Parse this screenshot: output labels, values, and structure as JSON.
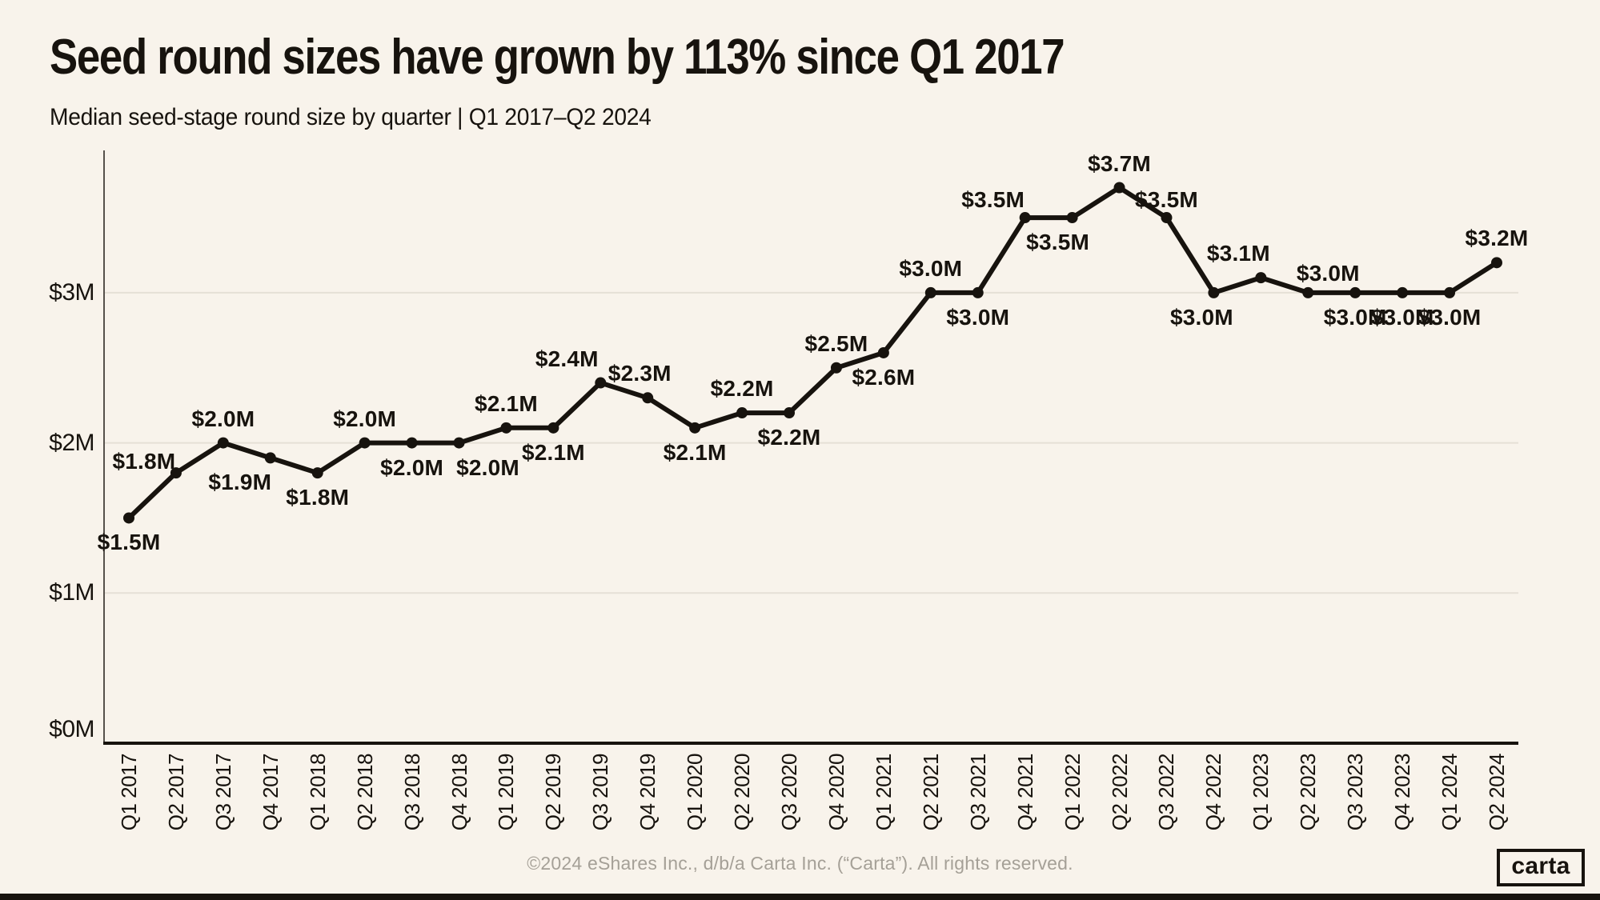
{
  "page": {
    "title": "Seed round sizes have grown by 113% since Q1 2017",
    "subtitle": "Median seed-stage round size by quarter | Q1 2017–Q2 2024",
    "footer": "©2024 eShares Inc., d/b/a Carta Inc. (“Carta”). All rights reserved.",
    "logo_text": "carta"
  },
  "colors": {
    "background": "#f8f3eb",
    "ink": "#17130e",
    "line": "#17130e",
    "grid": "#e5e0d6",
    "y_axis_line": "#56514b",
    "muted": "#a5a097"
  },
  "chart_data": {
    "type": "line",
    "title": "Seed round sizes have grown by 113% since Q1 2017",
    "subtitle": "Median seed-stage round size by quarter | Q1 2017–Q2 2024",
    "x": [
      "Q1 2017",
      "Q2 2017",
      "Q3 2017",
      "Q4 2017",
      "Q1 2018",
      "Q2 2018",
      "Q3 2018",
      "Q4 2018",
      "Q1 2019",
      "Q2 2019",
      "Q3 2019",
      "Q4 2019",
      "Q1 2020",
      "Q2 2020",
      "Q3 2020",
      "Q4 2020",
      "Q1 2021",
      "Q2 2021",
      "Q3 2021",
      "Q4 2021",
      "Q1 2022",
      "Q2 2022",
      "Q3 2022",
      "Q4 2022",
      "Q1 2023",
      "Q2 2023",
      "Q3 2023",
      "Q4 2023",
      "Q1 2024",
      "Q2 2024"
    ],
    "series": [
      {
        "name": "Median seed-stage round size ($M)",
        "values": [
          1.5,
          1.8,
          2.0,
          1.9,
          1.8,
          2.0,
          2.0,
          2.0,
          2.1,
          2.1,
          2.4,
          2.3,
          2.1,
          2.2,
          2.2,
          2.5,
          2.6,
          3.0,
          3.0,
          3.5,
          3.5,
          3.7,
          3.5,
          3.0,
          3.1,
          3.0,
          3.0,
          3.0,
          3.0,
          3.2
        ]
      }
    ],
    "point_labels": [
      "$1.5M",
      "$1.8M",
      "$2.0M",
      "$1.9M",
      "$1.8M",
      "$2.0M",
      "$2.0M",
      "$2.0M",
      "$2.1M",
      "$2.1M",
      "$2.4M",
      "$2.3M",
      "$2.1M",
      "$2.2M",
      "$2.2M",
      "$2.5M",
      "$2.6M",
      "$3.0M",
      "$3.0M",
      "$3.5M",
      "$3.5M",
      "$3.7M",
      "$3.5M",
      "$3.0M",
      "$3.1M",
      "$3.0M",
      "$3.0M",
      "$3.0M",
      "$3.0M",
      "$3.2M"
    ],
    "label_positions": [
      "below",
      "above",
      "above",
      "below",
      "below",
      "above",
      "below",
      "below",
      "above",
      "below",
      "above",
      "above",
      "below",
      "above",
      "below",
      "above",
      "below",
      "above",
      "below",
      "above",
      "below",
      "above",
      "above",
      "below",
      "above",
      "above",
      "below",
      "below",
      "below",
      "above"
    ],
    "label_dx": [
      0,
      -40,
      0,
      -38,
      0,
      0,
      0,
      36,
      0,
      0,
      -42,
      -10,
      0,
      0,
      0,
      0,
      0,
      0,
      0,
      -40,
      -18,
      0,
      0,
      -15,
      -28,
      25,
      0,
      0,
      0,
      0
    ],
    "label_dy": [
      0,
      16,
      0,
      0,
      0,
      0,
      0,
      0,
      0,
      0,
      0,
      0,
      0,
      0,
      0,
      0,
      0,
      0,
      0,
      8,
      0,
      0,
      8,
      0,
      0,
      6,
      0,
      0,
      0,
      0
    ],
    "xlabel": "",
    "ylabel": "",
    "yticks": [
      {
        "label": "$0M",
        "value": 0
      },
      {
        "label": "$1M",
        "value": 1
      },
      {
        "label": "$2M",
        "value": 2
      },
      {
        "label": "$3M",
        "value": 3
      }
    ],
    "ylim": [
      0,
      3.95
    ],
    "grid": "horizontal",
    "legend": "none"
  }
}
